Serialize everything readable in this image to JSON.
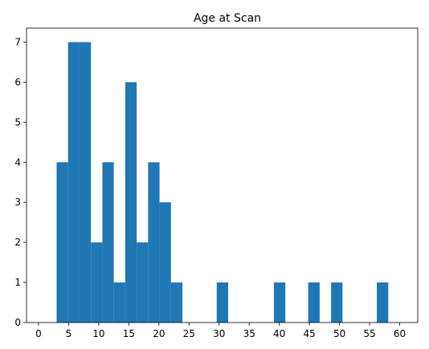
{
  "chart_data": {
    "type": "bar",
    "title": "Age at Scan",
    "xlabel": "",
    "ylabel": "",
    "xlim": [
      -2,
      63
    ],
    "ylim": [
      0,
      7.35
    ],
    "bin_edges": [
      3,
      4.9,
      6.8,
      8.7,
      10.6,
      12.5,
      14.4,
      16.3,
      18.2,
      20.1,
      22.0,
      23.9,
      25.8,
      27.7,
      29.6,
      31.5,
      33.4,
      35.3,
      37.2,
      39.1,
      41.0,
      42.9,
      44.8,
      46.7,
      48.6,
      50.5,
      52.4,
      54.3,
      56.2,
      58.1,
      60
    ],
    "values": [
      4,
      7,
      7,
      2,
      4,
      1,
      6,
      2,
      4,
      3,
      1,
      0,
      0,
      0,
      1,
      0,
      0,
      0,
      0,
      1,
      0,
      0,
      1,
      0,
      1,
      0,
      0,
      0,
      1,
      0
    ],
    "x_ticks": [
      "0",
      "5",
      "10",
      "15",
      "20",
      "25",
      "30",
      "35",
      "40",
      "45",
      "50",
      "55",
      "60"
    ],
    "x_tick_values": [
      0,
      5,
      10,
      15,
      20,
      25,
      30,
      35,
      40,
      45,
      50,
      55,
      60
    ],
    "y_ticks": [
      "0",
      "1",
      "2",
      "3",
      "4",
      "5",
      "6",
      "7"
    ],
    "y_tick_values": [
      0,
      1,
      2,
      3,
      4,
      5,
      6,
      7
    ],
    "bar_color": "#1f77b4",
    "grid": false,
    "legend": "none"
  }
}
